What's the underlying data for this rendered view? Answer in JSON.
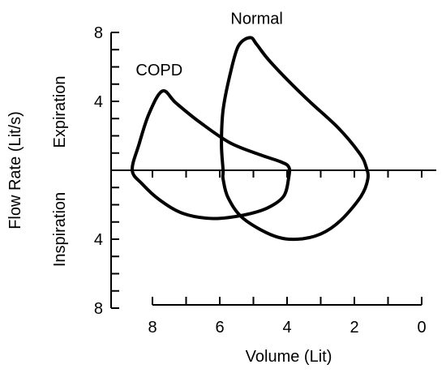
{
  "chart_data": {
    "type": "line",
    "title": "",
    "xlabel": "Volume (Lit)",
    "ylabel": "Flow Rate (Lit/s)",
    "region_labels": {
      "upper": "Expiration",
      "lower": "Inspiration"
    },
    "x_axis": {
      "min": 0,
      "max": 8.5,
      "reversed": true,
      "tick_labels": [
        "8",
        "6",
        "4",
        "2",
        "0"
      ],
      "tick_values": [
        8,
        6,
        4,
        2,
        0
      ],
      "minor_step": 1
    },
    "y_axis": {
      "min": -8,
      "max": 8,
      "tick_labels": [
        "8",
        "4",
        "4",
        "8"
      ],
      "tick_values": [
        8,
        4,
        -4,
        -8
      ],
      "minor_step": 1
    },
    "grid": false,
    "series": [
      {
        "name": "Normal",
        "label_anchor": {
          "x": 4.9,
          "y": 8.5
        },
        "points": [
          [
            5.9,
            0
          ],
          [
            5.95,
            1.5
          ],
          [
            5.9,
            3.5
          ],
          [
            5.7,
            5.5
          ],
          [
            5.45,
            7.2
          ],
          [
            5.1,
            7.7
          ],
          [
            4.9,
            7.3
          ],
          [
            4.5,
            6.3
          ],
          [
            3.5,
            4.3
          ],
          [
            2.5,
            2.5
          ],
          [
            1.85,
            1.0
          ],
          [
            1.65,
            0.2
          ],
          [
            1.6,
            -0.5
          ],
          [
            1.8,
            -1.5
          ],
          [
            2.4,
            -2.9
          ],
          [
            3.0,
            -3.7
          ],
          [
            3.7,
            -4.0
          ],
          [
            4.4,
            -3.8
          ],
          [
            5.3,
            -2.8
          ],
          [
            5.75,
            -1.6
          ],
          [
            5.9,
            -0.5
          ],
          [
            5.9,
            0
          ]
        ]
      },
      {
        "name": "COPD",
        "label_anchor": {
          "x": 7.8,
          "y": 5.5
        },
        "points": [
          [
            8.6,
            0
          ],
          [
            8.4,
            1.5
          ],
          [
            8.1,
            3.3
          ],
          [
            7.7,
            4.6
          ],
          [
            7.3,
            3.9
          ],
          [
            6.6,
            2.8
          ],
          [
            5.7,
            1.6
          ],
          [
            4.8,
            0.9
          ],
          [
            4.2,
            0.5
          ],
          [
            3.95,
            0.2
          ],
          [
            3.95,
            -0.4
          ],
          [
            4.1,
            -1.5
          ],
          [
            4.6,
            -2.2
          ],
          [
            5.3,
            -2.6
          ],
          [
            6.2,
            -2.8
          ],
          [
            7.1,
            -2.5
          ],
          [
            7.8,
            -1.7
          ],
          [
            8.3,
            -0.8
          ],
          [
            8.6,
            0
          ]
        ]
      }
    ]
  }
}
